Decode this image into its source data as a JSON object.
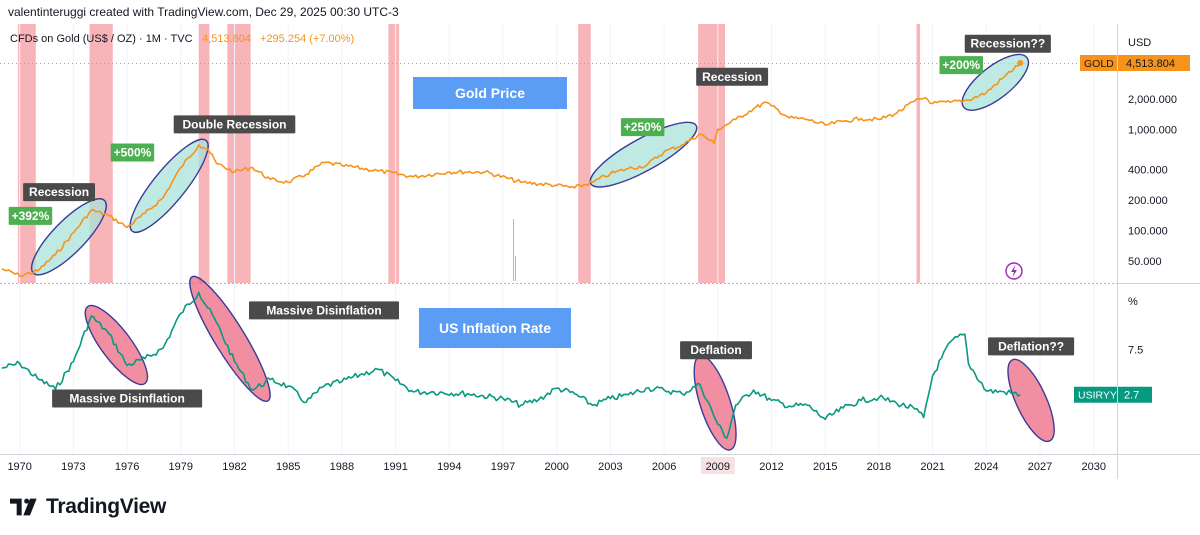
{
  "header": {
    "credit": "valentinteruggi created with TradingView.com, Dec 29, 2025 00:30 UTC-3",
    "symbol": "CFDs on Gold (US$ / OZ) · 1M · TVC",
    "price": "4,513.804",
    "change": "+295.254 (+7.00%)"
  },
  "brand": {
    "name": "TradingView"
  },
  "colors": {
    "gold": "#f7931a",
    "inflation": "#089981",
    "recession": "#f7a8ad",
    "teal_fill": "#a9e3d9",
    "pink_fill": "#ef7289",
    "ellipse_stroke": "#3b3b98",
    "box_blue": "#5b9cf4"
  },
  "chart_data": [
    {
      "type": "line",
      "title": "Gold Price",
      "scale": "log",
      "currency": "USD",
      "series": [
        {
          "name": "GOLD",
          "x": [
            1969,
            1970,
            1971,
            1972,
            1973,
            1974,
            1975,
            1976,
            1977,
            1978,
            1979,
            1980,
            1980.5,
            1981,
            1982,
            1983,
            1984,
            1985,
            1986,
            1987,
            1988,
            1990,
            1992,
            1994,
            1996,
            1998,
            2000,
            2001,
            2002,
            2003,
            2004,
            2005,
            2006,
            2007,
            2008,
            2008.8,
            2009,
            2010,
            2011,
            2011.7,
            2012,
            2013,
            2014,
            2015,
            2016,
            2017,
            2018,
            2019,
            2020,
            2020.6,
            2021,
            2022,
            2023,
            2024,
            2025,
            2025.9
          ],
          "values": [
            42,
            36,
            40,
            58,
            95,
            160,
            140,
            108,
            148,
            210,
            420,
            700,
            640,
            460,
            380,
            420,
            320,
            300,
            360,
            470,
            440,
            390,
            340,
            380,
            380,
            300,
            280,
            265,
            300,
            365,
            410,
            440,
            600,
            700,
            900,
            730,
            1000,
            1250,
            1600,
            1850,
            1700,
            1300,
            1250,
            1100,
            1200,
            1280,
            1250,
            1450,
            1900,
            2050,
            1800,
            1850,
            1950,
            2300,
            3300,
            4513
          ]
        }
      ],
      "y_ticks": [
        "4,513.804",
        "2,000.000",
        "1,000.000",
        "400.000",
        "200.000",
        "100.000",
        "50.000"
      ],
      "y_tick_values": [
        4513.804,
        2000,
        1000,
        400,
        200,
        100,
        50
      ],
      "last_label": "GOLD",
      "last_value": "4,513.804",
      "annotations": [
        {
          "text": "+392%",
          "kind": "green",
          "x": 1970.6,
          "y": 140
        },
        {
          "text": "Recession",
          "kind": "dark",
          "x": 1972.2,
          "y": 240
        },
        {
          "text": "+500%",
          "kind": "green",
          "x": 1976.3,
          "y": 590
        },
        {
          "text": "Double Recession",
          "kind": "dark",
          "x": 1982.0,
          "y": 1120
        },
        {
          "text": "+250%",
          "kind": "green",
          "x": 2004.8,
          "y": 1050
        },
        {
          "text": "Recession",
          "kind": "dark",
          "x": 2009.8,
          "y": 3300
        },
        {
          "text": "+200%",
          "kind": "green",
          "x": 2022.6,
          "y": 4300
        },
        {
          "text": "Recession??",
          "kind": "dark",
          "x": 2025.2,
          "y": 7000
        }
      ],
      "recession_bands": [
        [
          1969.9,
          1970.9
        ],
        [
          1973.9,
          1975.2
        ],
        [
          1980.0,
          1980.6
        ],
        [
          1981.6,
          1982.9
        ],
        [
          1990.6,
          1991.2
        ],
        [
          2001.2,
          2001.9
        ],
        [
          2007.9,
          2009.4
        ],
        [
          2020.1,
          2020.3
        ]
      ]
    },
    {
      "type": "line",
      "title": "US Inflation Rate",
      "unit": "%",
      "series": [
        {
          "name": "USIRYY",
          "x": [
            1969,
            1970,
            1971,
            1972,
            1973,
            1974,
            1975,
            1976,
            1977,
            1978,
            1979,
            1980,
            1981,
            1982,
            1983,
            1984,
            1985,
            1986,
            1987,
            1988,
            1989,
            1990,
            1991,
            1992,
            1993,
            1995,
            1997,
            1998,
            1999,
            2000,
            2001,
            2002,
            2003,
            2004,
            2005,
            2006,
            2007,
            2008,
            2009,
            2009.5,
            2010,
            2011,
            2012,
            2013,
            2014,
            2015,
            2016,
            2017,
            2018,
            2019,
            2020,
            2020.5,
            2021,
            2022,
            2022.8,
            2023,
            2024,
            2025,
            2025.9
          ],
          "values": [
            5.5,
            6.0,
            4.4,
            3.3,
            6.2,
            11.0,
            9.1,
            5.8,
            6.5,
            7.6,
            11.3,
            13.5,
            10.3,
            6.2,
            3.2,
            4.3,
            3.6,
            1.9,
            3.6,
            4.1,
            4.8,
            5.4,
            4.2,
            3.0,
            3.0,
            2.8,
            2.3,
            1.6,
            2.2,
            3.4,
            2.8,
            1.6,
            2.3,
            2.7,
            3.4,
            3.2,
            2.8,
            3.8,
            -0.4,
            -1.9,
            1.6,
            3.2,
            2.1,
            1.5,
            1.6,
            0.1,
            1.3,
            2.1,
            2.4,
            1.8,
            1.2,
            0.3,
            4.7,
            8.3,
            9.1,
            6.0,
            3.1,
            3.0,
            2.7
          ]
        }
      ],
      "y_ticks": [
        "7.5"
      ],
      "y_tick_values": [
        7.5
      ],
      "last_label": "USIRYY",
      "last_value": "2.7",
      "annotations": [
        {
          "text": "Massive Disinflation",
          "kind": "dark",
          "x": 1976.0,
          "y": 2.3
        },
        {
          "text": "Massive Disinflation",
          "kind": "dark",
          "x": 1987.0,
          "y": 11.6
        },
        {
          "text": "Deflation",
          "kind": "dark",
          "x": 2008.9,
          "y": 7.4
        },
        {
          "text": "Deflation??",
          "kind": "dark",
          "x": 2026.5,
          "y": 7.8
        }
      ]
    }
  ],
  "x_axis": {
    "ticks": [
      "1970",
      "1973",
      "1976",
      "1979",
      "1982",
      "1985",
      "1988",
      "1991",
      "1994",
      "1997",
      "2000",
      "2003",
      "2006",
      "2009",
      "2012",
      "2015",
      "2018",
      "2021",
      "2024",
      "2027",
      "2030"
    ],
    "tick_values": [
      1970,
      1973,
      1976,
      1979,
      1982,
      1985,
      1988,
      1991,
      1994,
      1997,
      2000,
      2003,
      2006,
      2009,
      2012,
      2015,
      2018,
      2021,
      2024,
      2027,
      2030
    ],
    "range": [
      1968.9,
      2031.3
    ],
    "highlighted": "2009"
  },
  "ellipses": [
    {
      "name": "ellipse-gold-1970s",
      "fill": "teal",
      "from": [
        1971.0,
        42
      ],
      "to": [
        1974.5,
        180
      ]
    },
    {
      "name": "ellipse-gold-1976-80",
      "fill": "teal",
      "from": [
        1976.5,
        110
      ],
      "to": [
        1980.2,
        700
      ]
    },
    {
      "name": "ellipse-gold-2002-08",
      "fill": "teal",
      "from": [
        2002.2,
        310
      ],
      "to": [
        2007.5,
        1020
      ]
    },
    {
      "name": "ellipse-gold-2022-25",
      "fill": "teal",
      "from": [
        2023.0,
        1800
      ],
      "to": [
        2026.0,
        4700
      ]
    },
    {
      "name": "ellipse-infl-1974-76",
      "fill": "pink",
      "from": [
        1974.0,
        11.5
      ],
      "to": [
        1976.8,
        4.4
      ]
    },
    {
      "name": "ellipse-infl-1979-83",
      "fill": "pink",
      "from": [
        1979.8,
        14.6
      ],
      "to": [
        1983.7,
        2.6
      ]
    },
    {
      "name": "ellipse-infl-2008-09",
      "fill": "pink",
      "from": [
        2008.1,
        6.2
      ],
      "to": [
        2009.6,
        -2.5
      ]
    },
    {
      "name": "ellipse-infl-2025-27",
      "fill": "pink",
      "from": [
        2025.6,
        5.8
      ],
      "to": [
        2027.4,
        -1.6
      ]
    }
  ],
  "labels": {
    "gold_title": "Gold Price",
    "inflation_title": "US Inflation Rate",
    "usd": "USD",
    "pct": "%",
    "flash": "⚡"
  }
}
